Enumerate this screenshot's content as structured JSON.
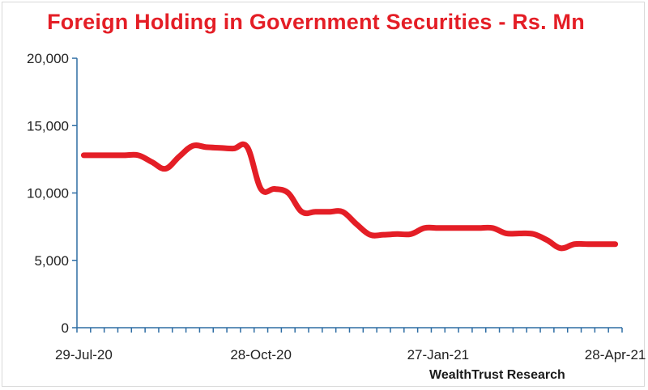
{
  "chart_data": {
    "type": "line",
    "title": "Foreign Holding in Government Securities - Rs. Mn",
    "source": "WealthTrust Research",
    "xlabel": "",
    "ylabel": "",
    "ylim": [
      0,
      20000
    ],
    "yticks": [
      0,
      5000,
      10000,
      15000,
      20000
    ],
    "ytick_labels": [
      "0",
      "5,000",
      "10,000",
      "15,000",
      "20,000"
    ],
    "xtick_labels": [
      "29-Jul-20",
      "28-Oct-20",
      "27-Jan-21",
      "28-Apr-21"
    ],
    "x_count": 40,
    "grid": false,
    "line_color": "#e41e26",
    "series": [
      {
        "values": [
          12800,
          12800,
          12800,
          12800,
          12800,
          12300,
          11800,
          12700,
          13500,
          13400,
          13350,
          13300,
          13400,
          10300,
          10300,
          10000,
          8600,
          8600,
          8600,
          8600,
          7700,
          6900,
          6900,
          6950,
          6950,
          7400,
          7400,
          7400,
          7400,
          7400,
          7400,
          7000,
          7000,
          6950,
          6500,
          5900,
          6200,
          6200,
          6200,
          6200
        ]
      }
    ]
  }
}
